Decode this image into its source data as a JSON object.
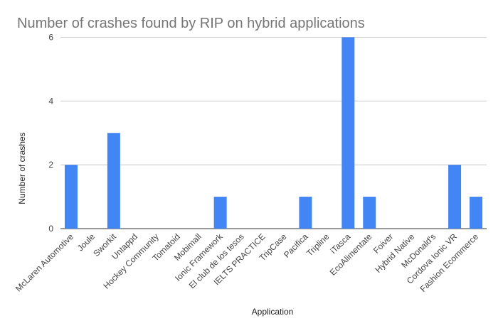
{
  "chart_data": {
    "type": "bar",
    "title": "Number of crashes found by RIP on hybrid applications",
    "xlabel": "Application",
    "ylabel": "Number of crashes",
    "ylim": [
      0,
      6.5
    ],
    "yticks": [
      0,
      2,
      4,
      6
    ],
    "grid": true,
    "legend": "none",
    "bar_color": "#4285F4",
    "categories": [
      "McLaren Automotive",
      "Joule",
      "Sworkit",
      "Untappd",
      "Hockey Community",
      "Tomatoid",
      "Mobimall",
      "Ionic Framework",
      "El club de los tesos",
      "IELTS PRACTICE",
      "TripCase",
      "Pacifica",
      "Tripline",
      "iTasca",
      "EcoAlimentate",
      "Foiver",
      "Hybrid Native",
      "McDonald's",
      "Cordova Ionic VR",
      "Fashion Ecommerce"
    ],
    "values": [
      2,
      0,
      3,
      0,
      0,
      0,
      0,
      1,
      0,
      0,
      0,
      1,
      0,
      6,
      1,
      0,
      0,
      0,
      2,
      1
    ]
  }
}
